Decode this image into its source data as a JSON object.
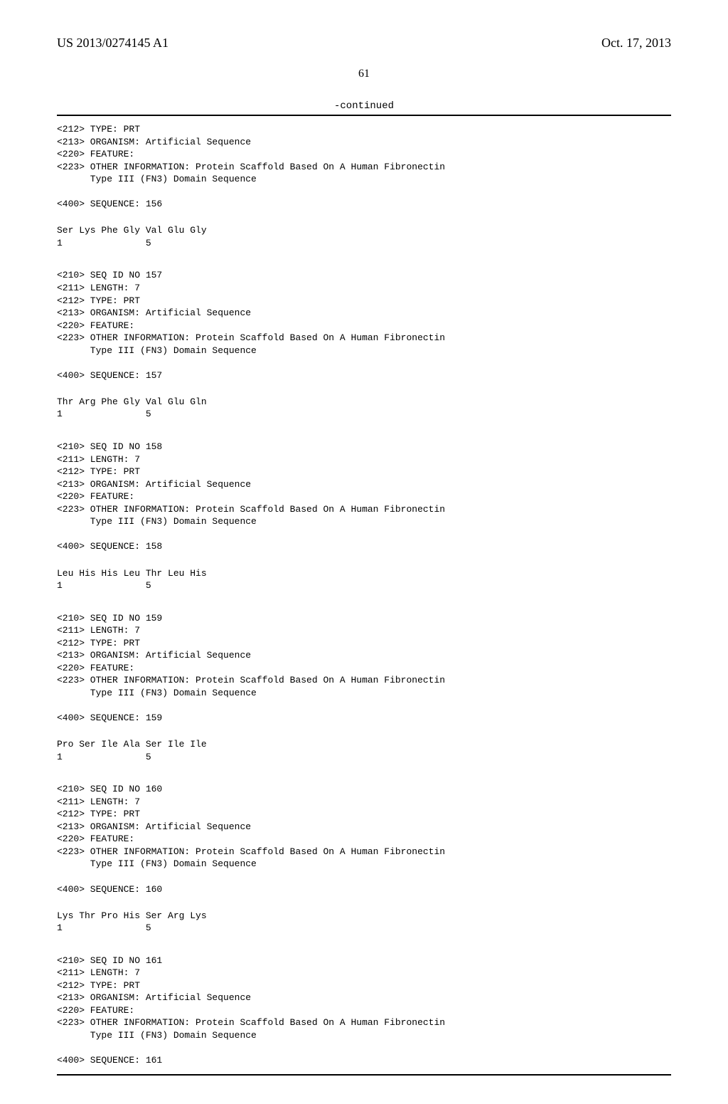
{
  "header": {
    "pub_number": "US 2013/0274145 A1",
    "pub_date": "Oct. 17, 2013"
  },
  "page_number": "61",
  "continued_label": "-continued",
  "colors": {
    "background": "#ffffff",
    "text": "#000000",
    "rule": "#000000"
  },
  "typography": {
    "header_font": "Times New Roman",
    "header_fontsize_pt": 13,
    "mono_font": "Courier New",
    "mono_fontsize_pt": 10,
    "page_num_fontsize_pt": 12
  },
  "entries": [
    {
      "lead_fields": [
        "<212> TYPE: PRT",
        "<213> ORGANISM: Artificial Sequence",
        "<220> FEATURE:",
        "<223> OTHER INFORMATION: Protein Scaffold Based On A Human Fibronectin"
      ],
      "lead_indent": "Type III (FN3) Domain Sequence",
      "sequence_tag": "<400> SEQUENCE: 156",
      "residues": "Ser Lys Phe Gly Val Glu Gly",
      "positions": "1               5"
    },
    {
      "lead_fields": [
        "<210> SEQ ID NO 157",
        "<211> LENGTH: 7",
        "<212> TYPE: PRT",
        "<213> ORGANISM: Artificial Sequence",
        "<220> FEATURE:",
        "<223> OTHER INFORMATION: Protein Scaffold Based On A Human Fibronectin"
      ],
      "lead_indent": "Type III (FN3) Domain Sequence",
      "sequence_tag": "<400> SEQUENCE: 157",
      "residues": "Thr Arg Phe Gly Val Glu Gln",
      "positions": "1               5"
    },
    {
      "lead_fields": [
        "<210> SEQ ID NO 158",
        "<211> LENGTH: 7",
        "<212> TYPE: PRT",
        "<213> ORGANISM: Artificial Sequence",
        "<220> FEATURE:",
        "<223> OTHER INFORMATION: Protein Scaffold Based On A Human Fibronectin"
      ],
      "lead_indent": "Type III (FN3) Domain Sequence",
      "sequence_tag": "<400> SEQUENCE: 158",
      "residues": "Leu His His Leu Thr Leu His",
      "positions": "1               5"
    },
    {
      "lead_fields": [
        "<210> SEQ ID NO 159",
        "<211> LENGTH: 7",
        "<212> TYPE: PRT",
        "<213> ORGANISM: Artificial Sequence",
        "<220> FEATURE:",
        "<223> OTHER INFORMATION: Protein Scaffold Based On A Human Fibronectin"
      ],
      "lead_indent": "Type III (FN3) Domain Sequence",
      "sequence_tag": "<400> SEQUENCE: 159",
      "residues": "Pro Ser Ile Ala Ser Ile Ile",
      "positions": "1               5"
    },
    {
      "lead_fields": [
        "<210> SEQ ID NO 160",
        "<211> LENGTH: 7",
        "<212> TYPE: PRT",
        "<213> ORGANISM: Artificial Sequence",
        "<220> FEATURE:",
        "<223> OTHER INFORMATION: Protein Scaffold Based On A Human Fibronectin"
      ],
      "lead_indent": "Type III (FN3) Domain Sequence",
      "sequence_tag": "<400> SEQUENCE: 160",
      "residues": "Lys Thr Pro His Ser Arg Lys",
      "positions": "1               5"
    },
    {
      "lead_fields": [
        "<210> SEQ ID NO 161",
        "<211> LENGTH: 7",
        "<212> TYPE: PRT",
        "<213> ORGANISM: Artificial Sequence",
        "<220> FEATURE:",
        "<223> OTHER INFORMATION: Protein Scaffold Based On A Human Fibronectin"
      ],
      "lead_indent": "Type III (FN3) Domain Sequence",
      "sequence_tag": "<400> SEQUENCE: 161",
      "residues": "",
      "positions": ""
    }
  ]
}
